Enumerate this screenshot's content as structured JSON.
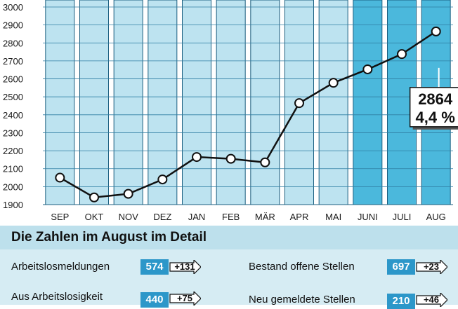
{
  "chart_data": {
    "type": "line",
    "categories": [
      "SEP",
      "OKT",
      "NOV",
      "DEZ",
      "JAN",
      "FEB",
      "MÄR",
      "APR",
      "MAI",
      "JUNI",
      "JULI",
      "AUG"
    ],
    "values": [
      2050,
      1940,
      1960,
      2040,
      2165,
      2155,
      2135,
      2465,
      2578,
      2653,
      2738,
      2864
    ],
    "highlighted_categories": [
      "JUNI",
      "JULI",
      "AUG"
    ],
    "ylim": [
      1900,
      3000
    ],
    "yticks": [
      1900,
      2000,
      2100,
      2200,
      2300,
      2400,
      2500,
      2600,
      2700,
      2800,
      2900,
      3000
    ],
    "grid": true,
    "callout": {
      "value": "2864",
      "rate": "4,4 %"
    },
    "colors": {
      "bar": "#bde3f0",
      "bar_highlight": "#4bb8dc",
      "line": "#111111",
      "marker_fill": "#ffffff"
    }
  },
  "detail": {
    "title": "Die Zahlen im August im Detail",
    "rows": [
      {
        "label": "Arbeitslosmeldungen",
        "value": "574",
        "delta": "+131"
      },
      {
        "label": "Aus Arbeitslosigkeit",
        "value": "440",
        "delta": "+75"
      },
      {
        "label": "Bestand offene Stellen",
        "value": "697",
        "delta": "+23"
      },
      {
        "label": "Neu gemeldete Stellen",
        "value": "210",
        "delta": "+46"
      }
    ]
  }
}
